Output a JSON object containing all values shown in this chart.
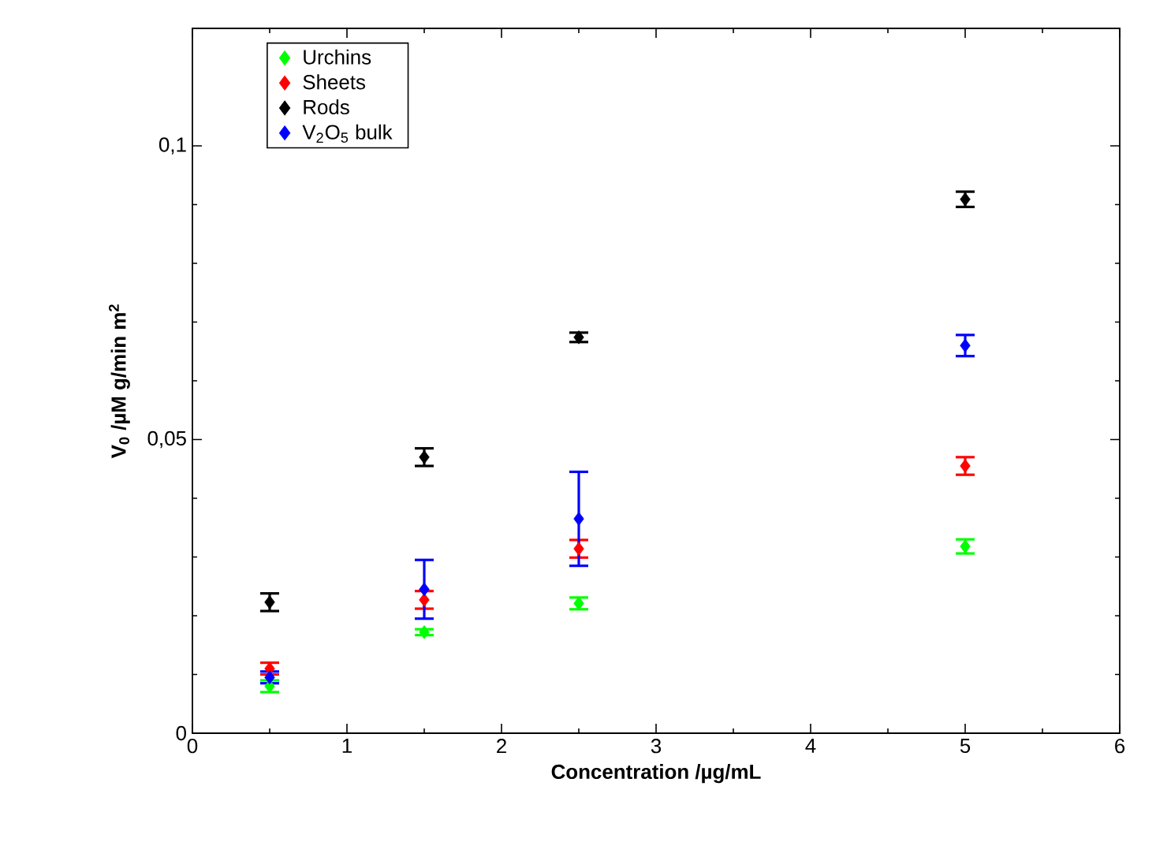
{
  "chart_data": {
    "type": "scatter",
    "xlabel": "Concentration /µg/mL",
    "ylabel": "V$_{0}$ /µM g/min m$^{2}$",
    "x": [
      0.5,
      1.5,
      2.5,
      5
    ],
    "series": [
      {
        "name": "Urchins",
        "color": "#00ff00",
        "values": [
          0.008,
          0.0172,
          0.0221,
          0.0318
        ],
        "errors": [
          0.001,
          0.0005,
          0.001,
          0.0012
        ]
      },
      {
        "name": "Sheets",
        "color": "#ff0000",
        "values": [
          0.011,
          0.0227,
          0.0314,
          0.0455
        ],
        "errors": [
          0.001,
          0.0015,
          0.0015,
          0.0015
        ]
      },
      {
        "name": "Rods",
        "color": "#000000",
        "values": [
          0.0223,
          0.047,
          0.0674,
          0.0909
        ],
        "errors": [
          0.0015,
          0.0015,
          0.0008,
          0.0013
        ]
      },
      {
        "name": "V$_{2}$O$_{5}$ bulk",
        "color": "#0000ff",
        "values": [
          0.0095,
          0.0245,
          0.0365,
          0.066
        ],
        "errors": [
          0.001,
          0.005,
          0.008,
          0.0018
        ]
      }
    ],
    "xlim": [
      0,
      6
    ],
    "xticks": [
      0,
      1,
      2,
      3,
      4,
      5,
      6
    ],
    "ylim": [
      0,
      0.12
    ],
    "yticks": [
      0,
      {
        "value": 0.05,
        "label": "0,05"
      },
      {
        "value": 0.1,
        "label": "0,1"
      }
    ],
    "marker": "diamond",
    "legend": "top left",
    "grid": false
  }
}
